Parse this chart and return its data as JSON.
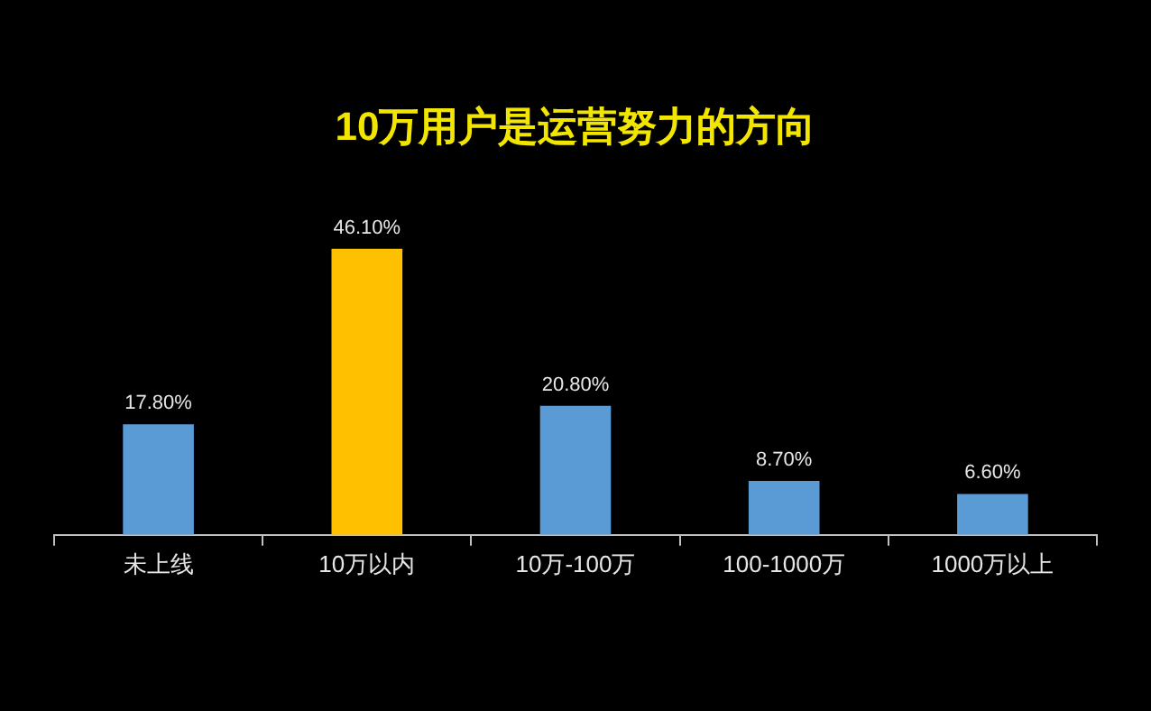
{
  "chart_data": {
    "type": "bar",
    "title": "10万用户是运营努力的方向",
    "categories": [
      "未上线",
      "10万以内",
      "10万-100万",
      "100-1000万",
      "1000万以上"
    ],
    "values": [
      17.8,
      46.1,
      20.8,
      8.7,
      6.6
    ],
    "colors": [
      "#5b9bd5",
      "#ffc000",
      "#5b9bd5",
      "#5b9bd5",
      "#5b9bd5"
    ],
    "value_labels": [
      "17.80%",
      "46.10%",
      "20.80%",
      "8.70%",
      "6.60%"
    ],
    "grid": false,
    "legend": false
  }
}
